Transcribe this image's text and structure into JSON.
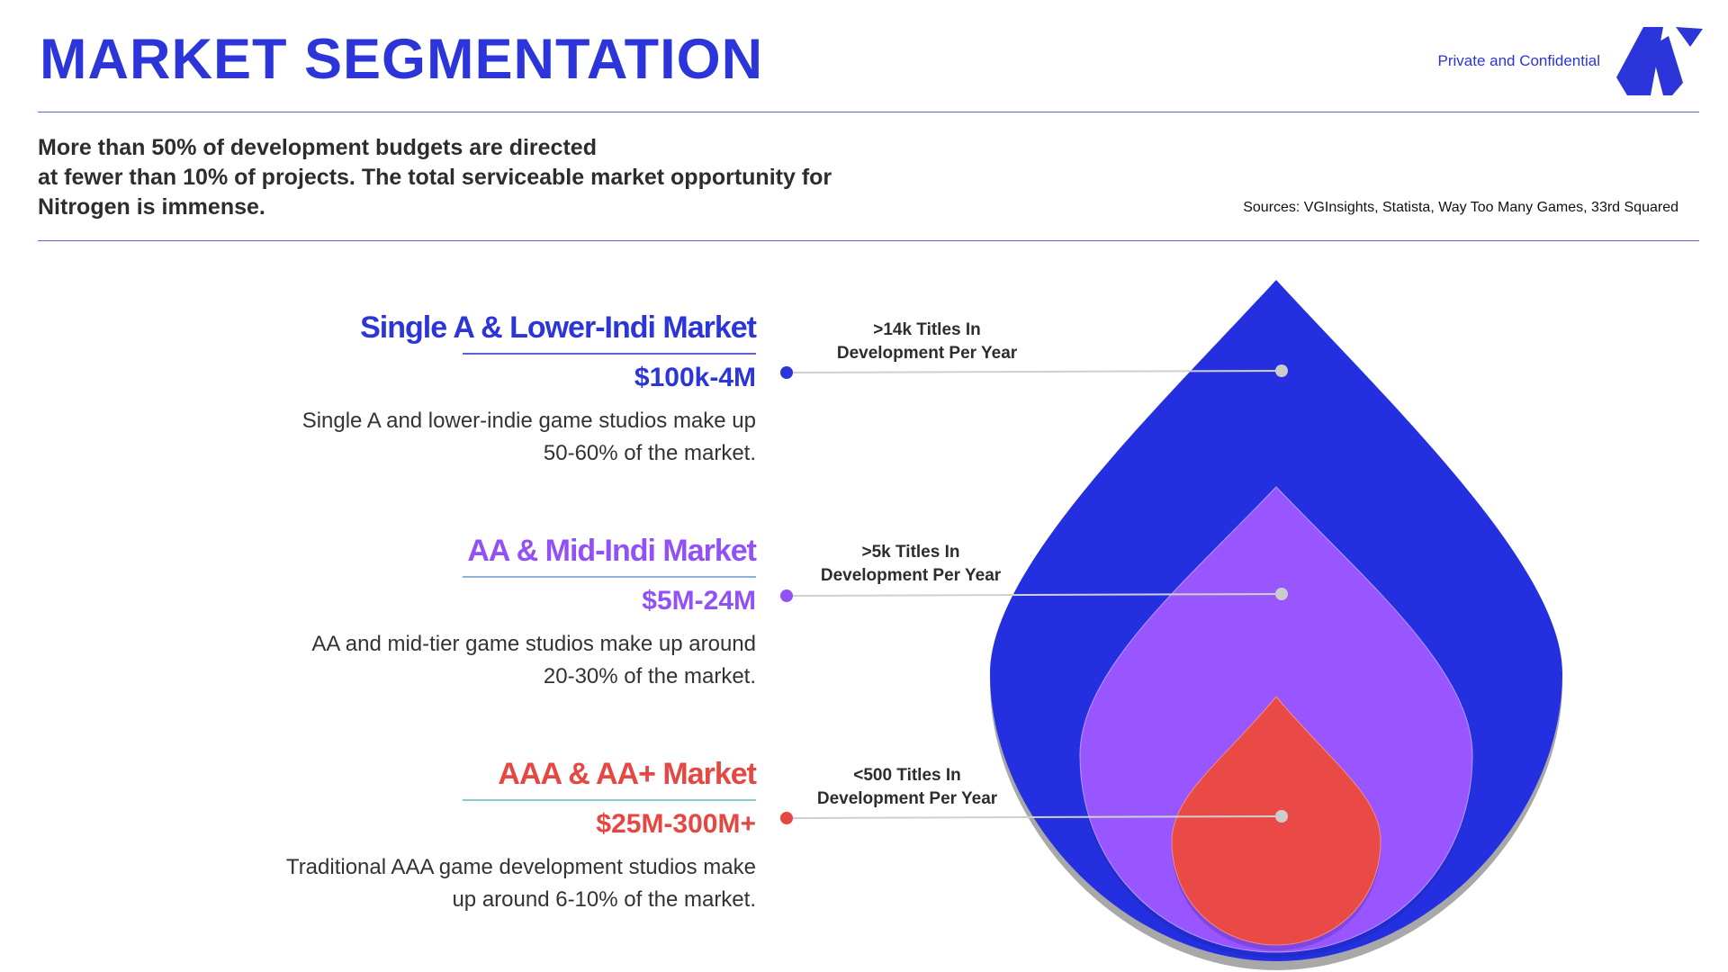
{
  "header": {
    "title": "MARKET SEGMENTATION",
    "confidential": "Private and Confidential"
  },
  "intro": {
    "lines": [
      "More than 50% of development budgets are directed",
      "at fewer than 10% of projects. The total serviceable market opportunity for",
      "Nitrogen is immense."
    ],
    "sources": "Sources: VGInsights, Statista, Way Too Many Games, 33rd Squared"
  },
  "segments": [
    {
      "title": "Single A & Lower-Indi Market",
      "range": "$100k-4M",
      "desc_lines": [
        "Single A and lower-indie game studios make up",
        "50-60% of the market."
      ],
      "callout_lines": [
        ">14k Titles In",
        "Development Per Year"
      ],
      "color": "#2b35d9",
      "underline_color": "#5a62d8"
    },
    {
      "title": "AA & Mid-Indi Market",
      "range": "$5M-24M",
      "desc_lines": [
        "AA and mid-tier game studios make up around",
        "20-30% of the market."
      ],
      "callout_lines": [
        ">5k Titles In",
        "Development Per Year"
      ],
      "color": "#9151f6",
      "underline_color": "#8fb3d9"
    },
    {
      "title": "AAA & AA+ Market",
      "range": "$25M-300M+",
      "desc_lines": [
        "Traditional AAA game development studios make",
        "up around 6-10% of the market."
      ],
      "callout_lines": [
        "<500 Titles In",
        "Development Per Year"
      ],
      "color": "#e54743",
      "underline_color": "#8fc9c9"
    }
  ],
  "colors": {
    "accent": "#2b35d9",
    "outer_drop": "#2430e0",
    "middle_drop": "#9955ff",
    "inner_drop": "#ea4a46",
    "shadow": "#a8a8a8",
    "connector": "#cfcfcf",
    "marker": "#cccccc"
  }
}
